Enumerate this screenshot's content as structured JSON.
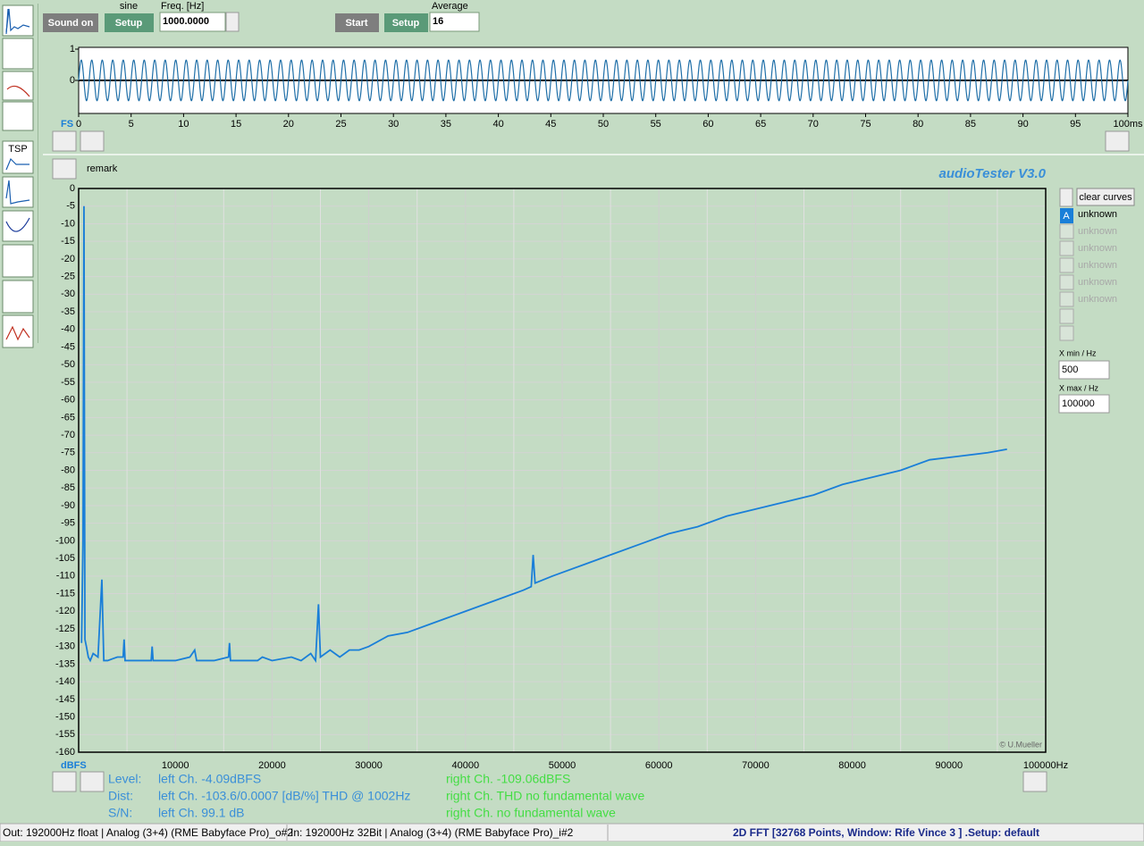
{
  "toolbar": {
    "sound_button": "Sound on",
    "signal": "sine",
    "setup_out": "Setup",
    "freq_label": "Freq. [Hz]",
    "freq_value": "1000.0000",
    "start_button": "Start",
    "setup_in": "Setup",
    "average_label": "Average",
    "average_value": "16"
  },
  "waveform": {
    "axis_label": "FS",
    "color": "#1f6fa8",
    "ylim": [
      -1,
      1
    ],
    "yticks": [
      1,
      0
    ],
    "xlim": [
      0,
      100
    ],
    "xticks": [
      0,
      5,
      10,
      15,
      20,
      25,
      30,
      35,
      40,
      45,
      50,
      55,
      60,
      65,
      70,
      75,
      80,
      85,
      90,
      95,
      {
        "value": 100,
        "label": "100ms"
      }
    ],
    "amplitude": 0.65
  },
  "spectrum": {
    "remark": "remark",
    "brand": "audioTester  V3.0",
    "y_unit": "dBFS",
    "credit": "© U.Mueller",
    "grid": true,
    "color": "#1a7fd8",
    "xlim": [
      0,
      100000
    ],
    "ylim": [
      -160,
      0
    ],
    "xticks": [
      10000,
      20000,
      30000,
      40000,
      50000,
      60000,
      70000,
      80000,
      90000,
      {
        "value": 100000,
        "label": "100000Hz"
      }
    ],
    "yticks": [
      0,
      -5,
      -10,
      -15,
      -20,
      -25,
      -30,
      -35,
      -40,
      -45,
      -50,
      -55,
      -60,
      -65,
      -70,
      -75,
      -80,
      -85,
      -90,
      -95,
      -100,
      -105,
      -110,
      -115,
      -120,
      -125,
      -130,
      -135,
      -140,
      -145,
      -150,
      -155,
      -160
    ],
    "series": {
      "x": [
        300,
        450,
        550,
        650,
        800,
        1000,
        1200,
        1500,
        2000,
        2400,
        2600,
        3000,
        4000,
        4600,
        4700,
        4800,
        6000,
        7500,
        7600,
        7700,
        9000,
        10000,
        11500,
        12000,
        12200,
        14000,
        15500,
        15600,
        15700,
        17000,
        18500,
        19000,
        20000,
        22000,
        23000,
        24000,
        24500,
        24800,
        25000,
        26000,
        27000,
        28000,
        29000,
        30000,
        32000,
        34000,
        36000,
        38000,
        40000,
        42000,
        44000,
        46000,
        46800,
        47000,
        47200,
        49000,
        52000,
        55000,
        58000,
        61000,
        64000,
        67000,
        70000,
        73000,
        76000,
        79000,
        82000,
        85000,
        88000,
        91000,
        94000,
        96000
      ],
      "values": [
        -129,
        -101,
        -5,
        -128,
        -130,
        -133,
        -134,
        -132,
        -133,
        -111,
        -134,
        -134,
        -133,
        -133,
        -128,
        -134,
        -134,
        -134,
        -130,
        -134,
        -134,
        -134,
        -133,
        -131,
        -134,
        -134,
        -133,
        -129,
        -134,
        -134,
        -134,
        -133,
        -134,
        -133,
        -134,
        -132,
        -134,
        -118,
        -133,
        -131,
        -133,
        -131,
        -131,
        -130,
        -127,
        -126,
        -124,
        -122,
        -120,
        -118,
        -116,
        -114,
        -113,
        -104,
        -112,
        -110,
        -107,
        -104,
        -101,
        -98,
        -96,
        -93,
        -91,
        -89,
        -87,
        -84,
        -82,
        -80,
        -77,
        -76,
        -75,
        -74
      ]
    }
  },
  "curves_panel": {
    "clear_button": "clear curves",
    "active": "A",
    "curves": [
      "unknown",
      "unknown",
      "unknown",
      "unknown",
      "unknown",
      "unknown"
    ],
    "xmin_label": "X min / Hz",
    "xmin_value": "500",
    "xmax_label": "X max / Hz",
    "xmax_value": "100000"
  },
  "results": [
    {
      "label": "Level:",
      "left": "left Ch. -4.09dBFS",
      "right": "right Ch. -109.06dBFS"
    },
    {
      "label": "Dist:",
      "left": "left Ch. -103.6/0.0007 [dB/%] THD @ 1002Hz",
      "right": "right Ch. THD no fundamental wave"
    },
    {
      "label": "S/N:",
      "left": "left Ch. 99.1 dB",
      "right": "right Ch.  no fundamental wave"
    }
  ],
  "status_bar": {
    "output": "Out: 192000Hz float  | Analog (3+4) (RME Babyface Pro)_o#2",
    "input": "In: 192000Hz 32Bit  | Analog (3+4) (RME Babyface Pro)_i#2",
    "mode": "2D FFT [32768 Points, Window: Rife Vince 3 ]  .Setup:  default"
  }
}
